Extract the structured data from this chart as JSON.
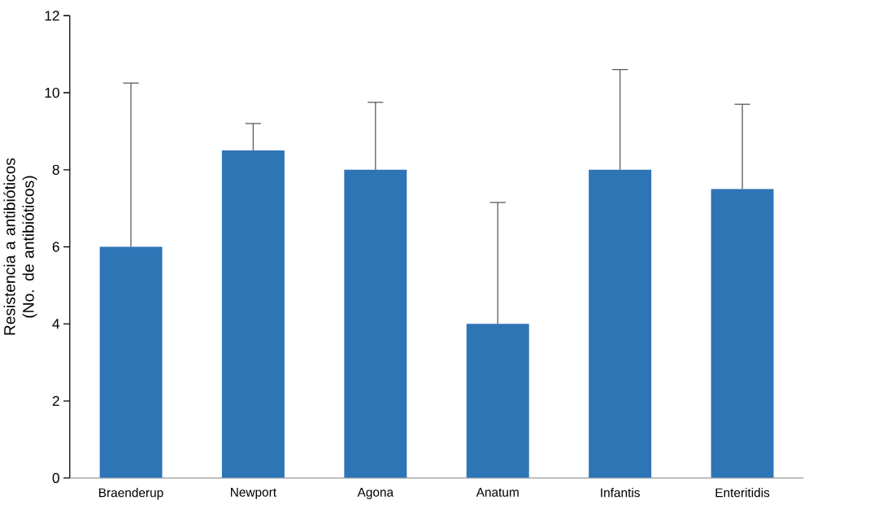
{
  "chart_data": {
    "type": "bar",
    "ylabel": "Resistencia a antibióticos (No. de antibióticos)",
    "categories": [
      "Braenderup",
      "Newport",
      "Agona",
      "Anatum",
      "Infantis",
      "Enteritidis"
    ],
    "values": [
      6,
      8.5,
      8,
      4,
      8,
      7.5
    ],
    "errors": [
      [
        6,
        10.25
      ],
      [
        8.5,
        9.2
      ],
      [
        8,
        9.75
      ],
      [
        4,
        7.15
      ],
      [
        8,
        10.6
      ],
      [
        7.5,
        9.7
      ]
    ],
    "color": "#2e75b6",
    "ylim": [
      0,
      12
    ],
    "yticks": [
      0,
      2,
      4,
      6,
      8,
      10,
      12
    ],
    "grid": false
  }
}
